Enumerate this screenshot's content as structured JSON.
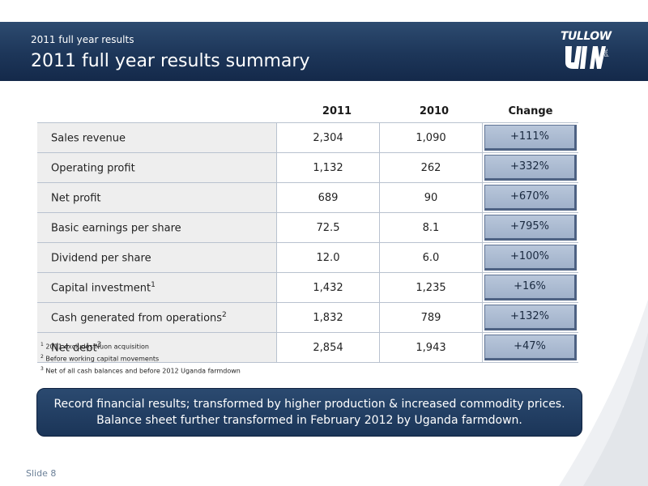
{
  "header": {
    "subtitle": "2011 full year results",
    "title": "2011 full year results summary",
    "logo_text": "TULLOW",
    "logo_suffix": "plc"
  },
  "table": {
    "columns": [
      "2011",
      "2010",
      "Change"
    ],
    "rows": [
      {
        "label": "Sales revenue",
        "sup": "",
        "y2011": "2,304",
        "y2010": "1,090",
        "change": "+111%"
      },
      {
        "label": "Operating profit",
        "sup": "",
        "y2011": "1,132",
        "y2010": "262",
        "change": "+332%"
      },
      {
        "label": "Net profit",
        "sup": "",
        "y2011": "689",
        "y2010": "90",
        "change": "+670%"
      },
      {
        "label": "Basic earnings per share",
        "sup": "",
        "y2011": "72.5",
        "y2010": "8.1",
        "change": "+795%"
      },
      {
        "label": "Dividend per share",
        "sup": "",
        "y2011": "12.0",
        "y2010": "6.0",
        "change": "+100%"
      },
      {
        "label": "Capital investment",
        "sup": "1",
        "y2011": "1,432",
        "y2010": "1,235",
        "change": "+16%"
      },
      {
        "label": "Cash generated from operations",
        "sup": "2",
        "y2011": "1,832",
        "y2010": "789",
        "change": "+132%"
      },
      {
        "label": "Net debt",
        "sup": "3",
        "y2011": "2,854",
        "y2010": "1,943",
        "change": "+47%"
      }
    ]
  },
  "footnotes": [
    {
      "mark": "1",
      "text": "2011 excludes Nuon acquisition"
    },
    {
      "mark": "2",
      "text": "Before working capital movements"
    },
    {
      "mark": "3",
      "text": "Net of all cash balances and before 2012 Uganda farmdown"
    }
  ],
  "banner": {
    "line1": "Record financial results; transformed by higher production & increased commodity prices.",
    "line2": "Balance sheet further transformed in February 2012 by Uganda farmdown."
  },
  "slide_label": "Slide 8",
  "colors": {
    "header": "#1d3659",
    "change_cell": "#a8b8cf",
    "banner": "#1f3a60"
  }
}
